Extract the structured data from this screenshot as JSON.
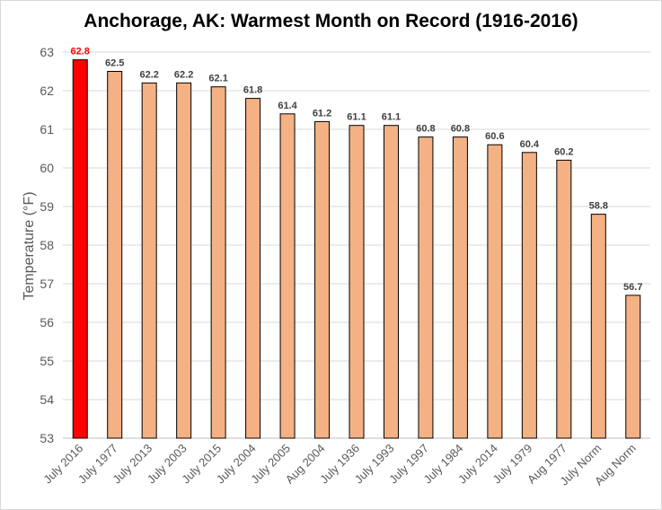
{
  "chart_data": {
    "type": "bar",
    "title": "Anchorage, AK: Warmest Month on Record (1916-2016)",
    "xlabel": "",
    "ylabel": "Temperature (°F)",
    "ylim": [
      53,
      63
    ],
    "yticks": [
      53,
      54,
      55,
      56,
      57,
      58,
      59,
      60,
      61,
      62,
      63
    ],
    "grid": true,
    "categories": [
      "July 2016",
      "July 1977",
      "July 2013",
      "July 2003",
      "July 2015",
      "July 2004",
      "July 2005",
      "Aug 2004",
      "July 1936",
      "July 1993",
      "July 1997",
      "July 1984",
      "July 2014",
      "July 1979",
      "Aug 1977",
      "July Norm",
      "Aug Norm"
    ],
    "values": [
      62.8,
      62.5,
      62.2,
      62.2,
      62.1,
      61.8,
      61.4,
      61.2,
      61.1,
      61.1,
      60.8,
      60.8,
      60.6,
      60.4,
      60.2,
      58.8,
      56.7
    ],
    "bar_colors": [
      "#ff0000",
      "#f4b183",
      "#f4b183",
      "#f4b183",
      "#f4b183",
      "#f4b183",
      "#f4b183",
      "#f4b183",
      "#f4b183",
      "#f4b183",
      "#f4b183",
      "#f4b183",
      "#f4b183",
      "#f4b183",
      "#f4b183",
      "#f4b183",
      "#f4b183"
    ],
    "label_colors": [
      "#ff0000",
      "#404040",
      "#404040",
      "#404040",
      "#404040",
      "#404040",
      "#404040",
      "#404040",
      "#404040",
      "#404040",
      "#404040",
      "#404040",
      "#404040",
      "#404040",
      "#404040",
      "#404040",
      "#404040"
    ]
  }
}
